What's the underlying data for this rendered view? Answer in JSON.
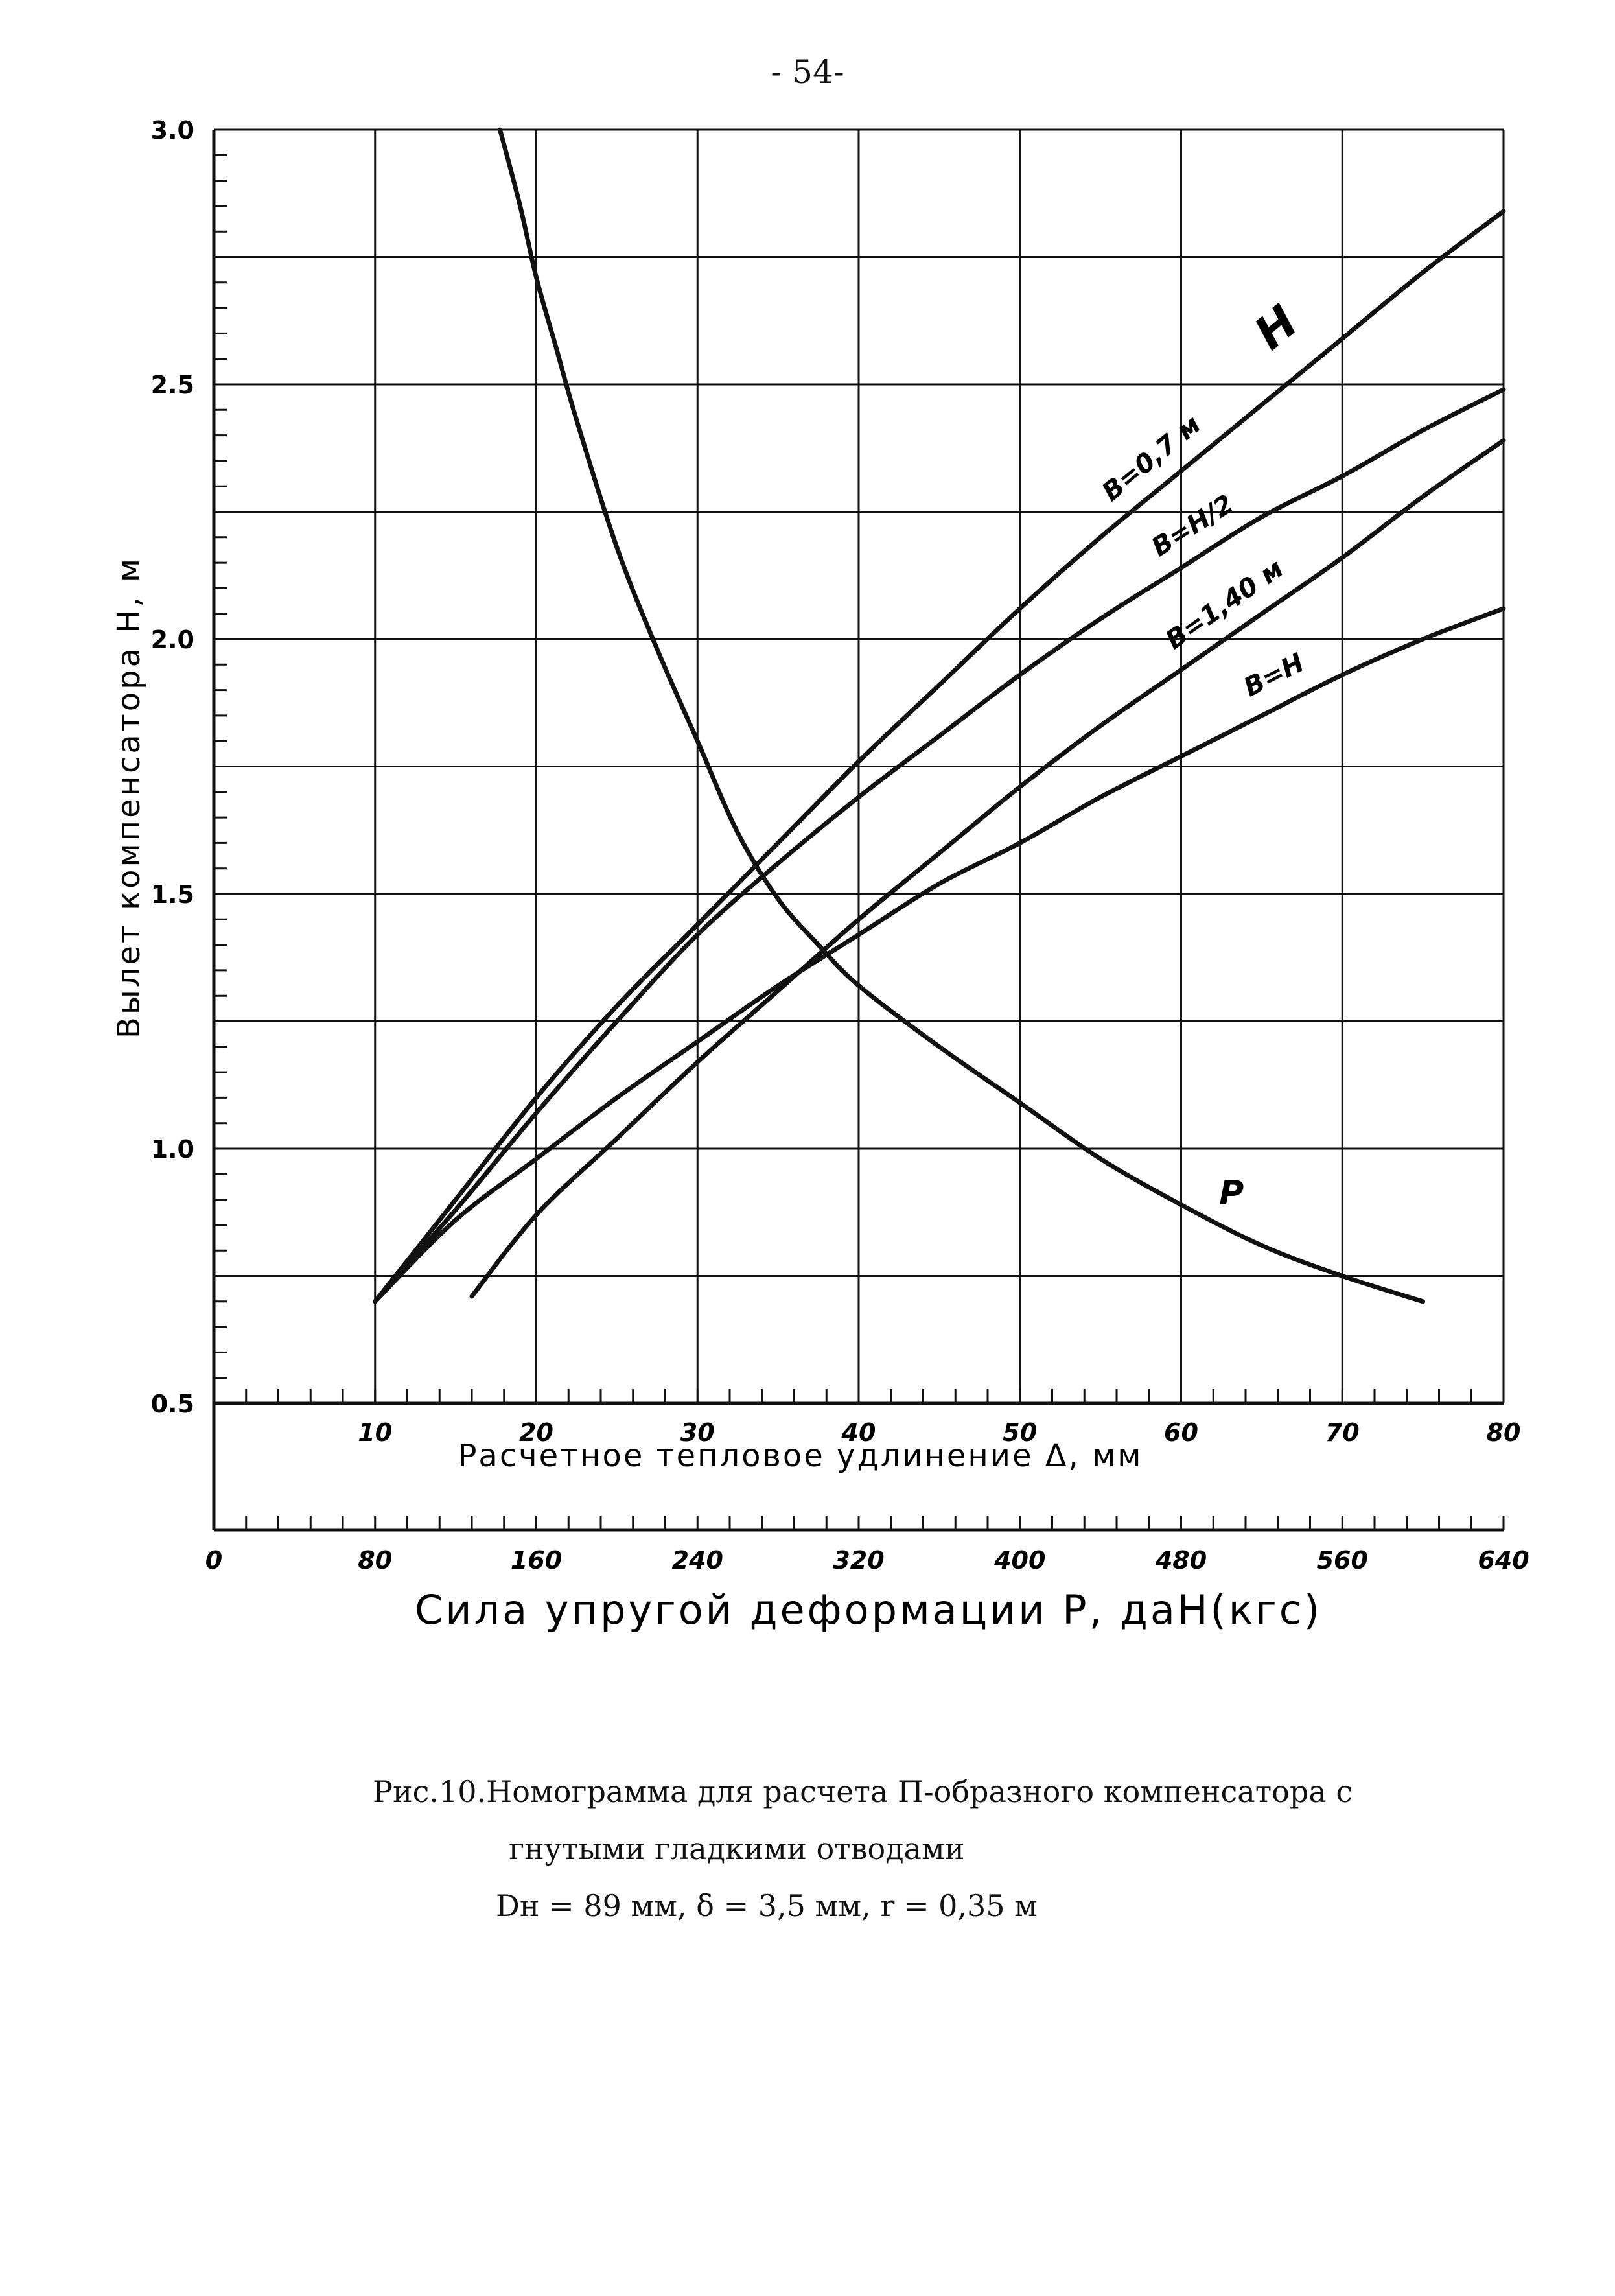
{
  "page": {
    "page_number": "- 54-"
  },
  "caption": {
    "line1": "Рис.10.Номограмма для расчета П-образного компенсатора с",
    "line2": "гнутыми гладкими отводами",
    "line3": "Dн = 89 мм,  δ = 3,5 мм,  r = 0,35 м"
  },
  "chart_data": {
    "type": "line",
    "title": "",
    "ylabel": "Вылет компенсатора H, м",
    "xlabel": "Расчетное тепловое удлинение Δ, мм",
    "xlabel2": "Сила упругой деформации P, даН(кгс)",
    "ylim": [
      0.5,
      3.0
    ],
    "xlim": [
      0,
      80
    ],
    "x2lim": [
      0,
      640
    ],
    "yticks": [
      "0.5",
      "1.0",
      "1.5",
      "2.0",
      "2.5",
      "3.0"
    ],
    "ytick_values": [
      0.5,
      1.0,
      1.5,
      2.0,
      2.5,
      3.0
    ],
    "xticks": [
      "10",
      "20",
      "30",
      "40",
      "50",
      "60",
      "70",
      "80"
    ],
    "xtick_values": [
      10,
      20,
      30,
      40,
      50,
      60,
      70,
      80
    ],
    "x2ticks": [
      "0",
      "80",
      "160",
      "240",
      "320",
      "400",
      "480",
      "560",
      "640"
    ],
    "x2tick_values": [
      0,
      80,
      160,
      240,
      320,
      400,
      480,
      560,
      640
    ],
    "grid": true,
    "line_color": "#111111",
    "series": [
      {
        "name": "B=0,7 м",
        "axis": "delta",
        "x": [
          10,
          15,
          20,
          25,
          30,
          35,
          40,
          45,
          50,
          55,
          60,
          65,
          70,
          75,
          80
        ],
        "y": [
          0.7,
          0.9,
          1.1,
          1.28,
          1.44,
          1.6,
          1.76,
          1.91,
          2.06,
          2.2,
          2.33,
          2.46,
          2.59,
          2.72,
          2.84
        ]
      },
      {
        "name": "B=H/2",
        "axis": "delta",
        "x": [
          10,
          15,
          20,
          25,
          30,
          35,
          40,
          45,
          50,
          55,
          60,
          65,
          70,
          75,
          80
        ],
        "y": [
          0.7,
          0.88,
          1.07,
          1.25,
          1.42,
          1.56,
          1.69,
          1.81,
          1.93,
          2.04,
          2.14,
          2.24,
          2.32,
          2.41,
          2.49
        ]
      },
      {
        "name": "B=1,40 м",
        "axis": "delta",
        "x": [
          16,
          20,
          25,
          30,
          35,
          40,
          45,
          50,
          55,
          60,
          65,
          70,
          75,
          80
        ],
        "y": [
          0.71,
          0.87,
          1.02,
          1.17,
          1.31,
          1.45,
          1.58,
          1.71,
          1.83,
          1.94,
          2.05,
          2.16,
          2.28,
          2.39
        ]
      },
      {
        "name": "B=H",
        "axis": "delta",
        "x": [
          10,
          15,
          20,
          25,
          30,
          35,
          40,
          45,
          50,
          55,
          60,
          65,
          70,
          75,
          80
        ],
        "y": [
          0.7,
          0.86,
          0.98,
          1.1,
          1.21,
          1.32,
          1.42,
          1.52,
          1.6,
          1.69,
          1.77,
          1.85,
          1.93,
          2.0,
          2.06
        ]
      },
      {
        "name": "P",
        "axis": "force",
        "x": [
          142,
          152,
          160,
          170,
          180,
          200,
          220,
          240,
          260,
          280,
          300,
          320,
          360,
          400,
          440,
          480,
          520,
          560,
          600
        ],
        "y": [
          3.0,
          2.85,
          2.71,
          2.57,
          2.43,
          2.18,
          1.98,
          1.8,
          1.62,
          1.49,
          1.4,
          1.32,
          1.2,
          1.09,
          0.98,
          0.89,
          0.81,
          0.75,
          0.7
        ]
      }
    ],
    "annotations": [
      {
        "text": "H",
        "series": "B=0,7 м"
      },
      {
        "text": "B=0,7 м",
        "series": "B=0,7 м"
      },
      {
        "text": "B=H/2",
        "series": "B=H/2"
      },
      {
        "text": "B=1,40 м",
        "series": "B=1,40 м"
      },
      {
        "text": "B=H",
        "series": "B=H"
      },
      {
        "text": "P",
        "series": "P"
      }
    ]
  }
}
